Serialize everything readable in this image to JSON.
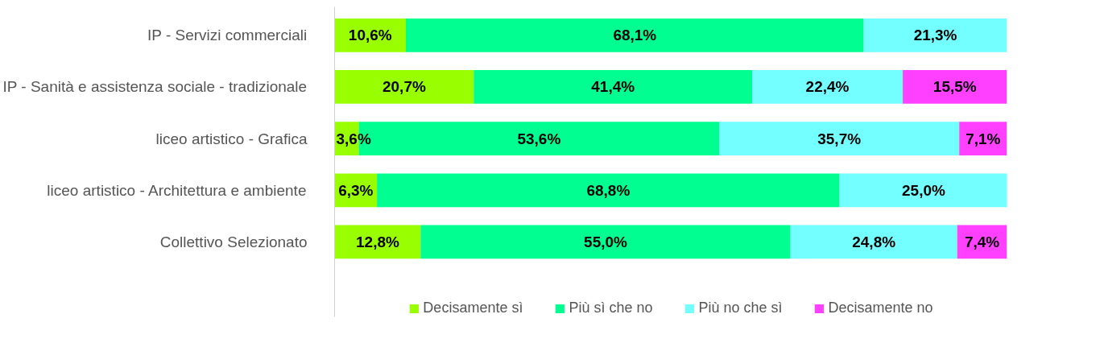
{
  "chart_data": {
    "type": "bar",
    "orientation": "horizontal",
    "stacked": true,
    "categories": [
      "IP - Servizi commerciali",
      "IP - Sanità e assistenza sociale - tradizionale",
      "liceo artistico - Grafica",
      "liceo artistico - Architettura e ambiente",
      "Collettivo Selezionato"
    ],
    "series": [
      {
        "name": "Decisamente sì",
        "color": "#99ff00",
        "values": [
          10.6,
          20.7,
          3.6,
          6.3,
          12.8
        ],
        "value_labels": [
          "10,6%",
          "20,7%",
          "3,6%",
          "6,3%",
          "12,8%"
        ]
      },
      {
        "name": "Più sì che no",
        "color": "#00ff90",
        "values": [
          68.1,
          41.4,
          53.6,
          68.8,
          55.0
        ],
        "value_labels": [
          "68,1%",
          "41,4%",
          "53,6%",
          "68,8%",
          "55,0%"
        ]
      },
      {
        "name": "Più no che sì",
        "color": "#73ffff",
        "values": [
          21.3,
          22.4,
          35.7,
          25.0,
          24.8
        ],
        "value_labels": [
          "21,3%",
          "22,4%",
          "35,7%",
          "25,0%",
          "24,8%"
        ]
      },
      {
        "name": "Decisamente no",
        "color": "#ff40ff",
        "values": [
          null,
          15.5,
          7.1,
          null,
          7.4
        ],
        "value_labels": [
          null,
          "15,5%",
          "7,1%",
          null,
          "7,4%"
        ]
      }
    ],
    "xlim": [
      0,
      100
    ],
    "tick_labels": "y",
    "grid": false,
    "legend": "bottom"
  }
}
